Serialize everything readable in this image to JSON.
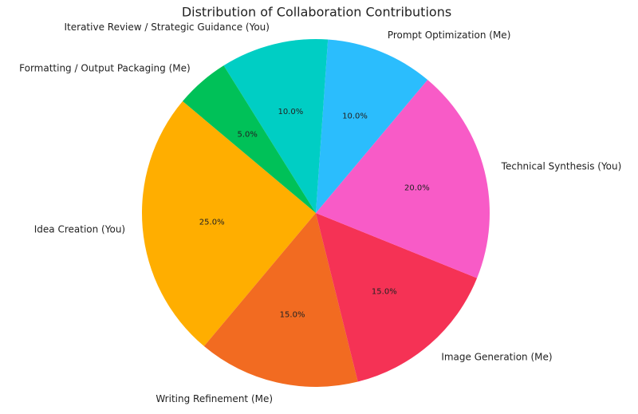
{
  "chart_data": {
    "type": "pie",
    "title": "Distribution of Collaboration Contributions",
    "categories": [
      "Idea Creation (You)",
      "Writing Refinement (Me)",
      "Image Generation (Me)",
      "Technical Synthesis (You)",
      "Prompt Optimization (Me)",
      "Iterative Review / Strategic Guidance (You)",
      "Formatting / Output Packaging (Me)"
    ],
    "values": [
      25,
      15,
      15,
      20,
      10,
      10,
      5
    ],
    "value_labels": [
      "25.0%",
      "15.0%",
      "15.0%",
      "20.0%",
      "10.0%",
      "10.0%",
      "5.0%"
    ],
    "colors": [
      "#ffae00",
      "#f26b21",
      "#f53255",
      "#f85bc7",
      "#2bbdfd",
      "#00cec4",
      "#00c158"
    ],
    "start_angle": 140
  }
}
